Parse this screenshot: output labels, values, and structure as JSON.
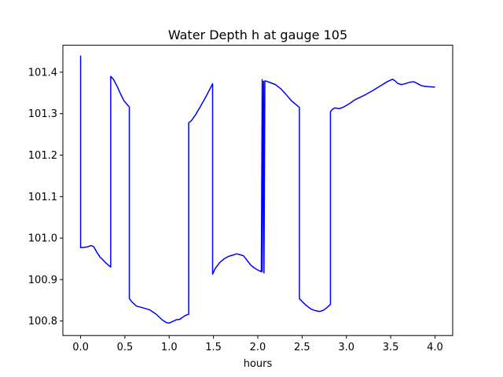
{
  "chart_data": {
    "type": "line",
    "title": "Water Depth h at gauge 105",
    "xlabel": "hours",
    "ylabel": "",
    "xlim": [
      -0.2,
      4.2
    ],
    "ylim": [
      100.765,
      101.465
    ],
    "xticks": [
      0.0,
      0.5,
      1.0,
      1.5,
      2.0,
      2.5,
      3.0,
      3.5,
      4.0
    ],
    "xtick_labels": [
      "0.0",
      "0.5",
      "1.0",
      "1.5",
      "2.0",
      "2.5",
      "3.0",
      "3.5",
      "4.0"
    ],
    "yticks": [
      100.8,
      100.9,
      101.0,
      101.1,
      101.2,
      101.3,
      101.4
    ],
    "ytick_labels": [
      "100.8",
      "100.9",
      "101.0",
      "101.1",
      "101.2",
      "101.3",
      "101.4"
    ],
    "grid": false,
    "legend": "none",
    "series": [
      {
        "color": "#0000ff",
        "x": [
          0.0,
          0.0,
          0.02,
          0.08,
          0.12,
          0.15,
          0.18,
          0.22,
          0.25,
          0.28,
          0.34,
          0.34,
          0.37,
          0.41,
          0.45,
          0.49,
          0.55,
          0.55,
          0.58,
          0.63,
          0.7,
          0.78,
          0.85,
          0.92,
          0.97,
          1.0,
          1.03,
          1.08,
          1.12,
          1.15,
          1.18,
          1.2,
          1.22,
          1.22,
          1.25,
          1.3,
          1.36,
          1.42,
          1.49,
          1.49,
          1.52,
          1.57,
          1.62,
          1.67,
          1.72,
          1.76,
          1.8,
          1.84,
          1.88,
          1.92,
          1.96,
          2.0,
          2.04,
          2.05,
          2.05,
          2.065,
          2.07,
          2.08,
          2.08,
          2.1,
          2.14,
          2.2,
          2.26,
          2.32,
          2.38,
          2.43,
          2.47,
          2.47,
          2.5,
          2.55,
          2.6,
          2.65,
          2.7,
          2.74,
          2.78,
          2.82,
          2.82,
          2.84,
          2.87,
          2.92,
          2.97,
          3.04,
          3.1,
          3.2,
          3.3,
          3.4,
          3.46,
          3.5,
          3.52,
          3.55,
          3.58,
          3.62,
          3.66,
          3.72,
          3.76,
          3.8,
          3.84,
          3.88,
          3.93,
          4.0
        ],
        "y": [
          101.44,
          100.977,
          100.977,
          100.979,
          100.982,
          100.979,
          100.967,
          100.954,
          100.948,
          100.941,
          100.93,
          101.39,
          101.383,
          101.367,
          101.348,
          101.331,
          101.316,
          100.854,
          100.846,
          100.836,
          100.832,
          100.827,
          100.817,
          100.803,
          100.796,
          100.795,
          100.798,
          100.803,
          100.804,
          100.809,
          100.813,
          100.815,
          100.816,
          101.278,
          101.283,
          101.298,
          101.32,
          101.343,
          101.372,
          100.913,
          100.927,
          100.941,
          100.95,
          100.956,
          100.959,
          100.962,
          100.96,
          100.957,
          100.946,
          100.935,
          100.928,
          100.923,
          100.919,
          101.382,
          100.919,
          101.378,
          100.916,
          101.379,
          101.379,
          101.378,
          101.375,
          101.37,
          101.36,
          101.346,
          101.331,
          101.322,
          101.315,
          100.854,
          100.847,
          100.837,
          100.829,
          100.825,
          100.823,
          100.826,
          100.832,
          100.84,
          101.305,
          101.31,
          101.314,
          101.312,
          101.316,
          101.325,
          101.334,
          101.344,
          101.356,
          101.369,
          101.377,
          101.381,
          101.383,
          101.379,
          101.373,
          101.37,
          101.372,
          101.376,
          101.377,
          101.373,
          101.368,
          101.366,
          101.365,
          101.364
        ]
      }
    ]
  }
}
